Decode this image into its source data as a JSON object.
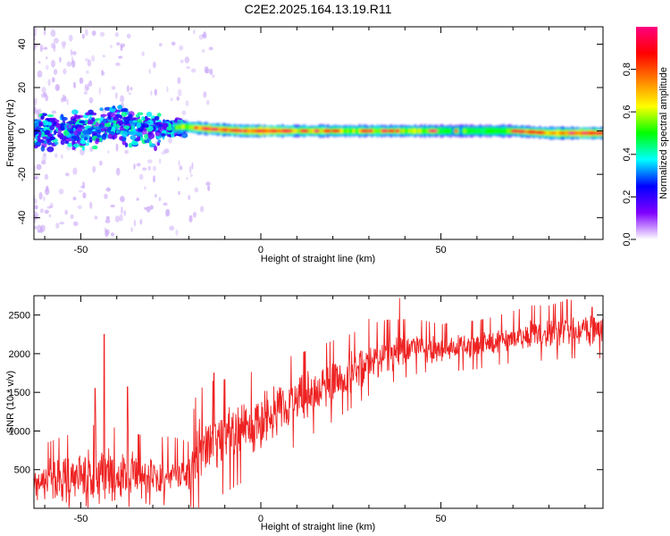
{
  "title": "C2E2.2025.164.13.19.R11",
  "chart_data": [
    {
      "type": "heatmap",
      "xlabel": "Height of straight line (km)",
      "ylabel": "Frequency (Hz)",
      "xlim": [
        -63,
        95
      ],
      "ylim": [
        -50,
        48
      ],
      "xticks": [
        -50,
        0,
        50
      ],
      "yticks": [
        -40,
        -20,
        0,
        20,
        40
      ],
      "colorbar": {
        "label": "Normalized spectral amplitude",
        "range": [
          0,
          1
        ],
        "ticks": [
          "0.0",
          "0.2",
          "0.4",
          "0.6",
          "0.8"
        ],
        "colormap": [
          "#ffffff",
          "#8000ff",
          "#0000ff",
          "#00ffff",
          "#00ff00",
          "#ffff00",
          "#ff8000",
          "#ff0000",
          "#ff0080"
        ]
      },
      "ridge": {
        "x": [
          -63,
          -50,
          -40,
          -30,
          -22,
          -15,
          -5,
          0,
          10,
          20,
          30,
          40,
          50,
          60,
          70,
          80,
          90,
          95
        ],
        "freq": [
          0,
          0,
          3,
          0,
          2,
          1,
          0,
          0,
          0,
          0,
          0,
          0,
          0,
          0,
          0,
          -1,
          -1,
          -1
        ],
        "amplitude": [
          0.25,
          0.3,
          0.3,
          0.3,
          0.55,
          0.8,
          0.75,
          0.9,
          0.6,
          0.6,
          0.55,
          0.6,
          0.5,
          0.5,
          0.55,
          0.7,
          0.85,
          0.8
        ]
      }
    },
    {
      "type": "line",
      "xlabel": "Height of straight line (km)",
      "ylabel": "SNR (10 * v/v)",
      "xlim": [
        -63,
        95
      ],
      "ylim": [
        0,
        2750
      ],
      "xticks": [
        -50,
        0,
        50
      ],
      "yticks": [
        500,
        1000,
        1500,
        2000,
        2500
      ],
      "color": "#ee2222",
      "series": [
        {
          "x": [
            -63,
            -55,
            -50,
            -45,
            -40,
            -35,
            -30,
            -25,
            -20,
            -18,
            -15,
            -10,
            -5,
            0,
            5,
            10,
            15,
            20,
            25,
            30,
            35,
            40,
            45,
            50,
            55,
            60,
            65,
            70,
            75,
            80,
            85,
            90,
            95
          ],
          "y": [
            300,
            380,
            420,
            450,
            420,
            400,
            420,
            450,
            420,
            700,
            800,
            900,
            1000,
            1100,
            1250,
            1380,
            1500,
            1620,
            1750,
            1900,
            2000,
            2050,
            2080,
            2050,
            2080,
            2100,
            2150,
            2200,
            2250,
            2250,
            2300,
            2300,
            2300
          ]
        }
      ],
      "spikes": [
        {
          "x": -43.5,
          "y": 2250
        },
        {
          "x": -46,
          "y": 1550
        },
        {
          "x": -37,
          "y": 1570
        },
        {
          "x": -13,
          "y": 1750
        },
        {
          "x": 38.5,
          "y": 2720
        },
        {
          "x": 30,
          "y": 2450
        },
        {
          "x": 85,
          "y": 2700
        },
        {
          "x": 92,
          "y": 2600
        }
      ],
      "noise_amplitude": [
        220,
        250,
        260,
        300,
        280,
        260,
        220,
        220,
        200,
        350,
        380,
        350,
        330,
        320,
        300,
        280,
        260,
        250,
        230,
        220,
        200,
        180,
        160,
        150,
        150,
        150,
        150,
        160,
        170,
        170,
        180,
        180,
        180
      ]
    }
  ]
}
